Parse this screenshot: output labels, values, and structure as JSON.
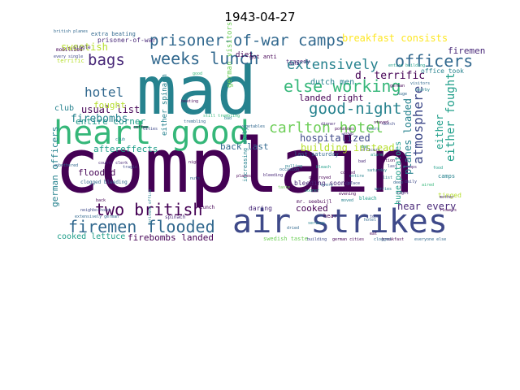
{
  "title": "1943-04-27",
  "colors": {
    "background": "#ffffff",
    "dark_purple": "#440154",
    "purple": "#482878",
    "indigo": "#3e4989",
    "blue": "#31688e",
    "teal": "#26828e",
    "sea": "#1f9e89",
    "green": "#35b779",
    "light_green": "#6ece58",
    "lime": "#b5de2b",
    "yellow": "#fde725"
  },
  "words": [
    {
      "text": "complain",
      "color": "#440154"
    },
    {
      "text": "mad",
      "color": "#26828e"
    },
    {
      "text": "heart good",
      "color": "#35b779"
    },
    {
      "text": "air strikes",
      "color": "#3e4989"
    },
    {
      "text": "prisoner-of-war camps",
      "color": "#31688e"
    },
    {
      "text": "weeks lunch",
      "color": "#31688e"
    },
    {
      "text": "bags",
      "color": "#482878"
    },
    {
      "text": "officers",
      "color": "#31688e"
    },
    {
      "text": "extensively",
      "color": "#26828e"
    },
    {
      "text": "else working",
      "color": "#35b779"
    },
    {
      "text": "good-night",
      "color": "#26828e"
    },
    {
      "text": "carlton hotel",
      "color": "#6ece58"
    },
    {
      "text": "hotel",
      "color": "#31688e"
    },
    {
      "text": "two british",
      "color": "#440154"
    },
    {
      "text": "firemen flooded",
      "color": "#31688e"
    },
    {
      "text": "atmosphere",
      "color": "#3e4989"
    },
    {
      "text": "either fought",
      "color": "#1f9e89"
    },
    {
      "text": "breakfast consists",
      "color": "#fde725"
    },
    {
      "text": "sweetish",
      "color": "#b5de2b"
    },
    {
      "text": "d. terrific",
      "color": "#440154"
    },
    {
      "text": "firemen",
      "color": "#482878"
    },
    {
      "text": "landed right",
      "color": "#440154"
    },
    {
      "text": "dutch men",
      "color": "#26828e"
    },
    {
      "text": "usual list",
      "color": "#440154"
    },
    {
      "text": "entire corner",
      "color": "#1f9e89"
    },
    {
      "text": "fought",
      "color": "#b5de2b"
    },
    {
      "text": "club",
      "color": "#26828e"
    },
    {
      "text": "firebombs",
      "color": "#26828e"
    },
    {
      "text": "aftereffects",
      "color": "#1f9e89"
    },
    {
      "text": "hospitalized",
      "color": "#3e4989"
    },
    {
      "text": "building instead",
      "color": "#b5de2b"
    },
    {
      "text": "back last",
      "color": "#31688e"
    },
    {
      "text": "planes loaded",
      "color": "#26828e"
    },
    {
      "text": "either",
      "color": "#1f9e89"
    },
    {
      "text": "german officers",
      "color": "#26828e"
    },
    {
      "text": "flooded",
      "color": "#440154"
    },
    {
      "text": "cooked",
      "color": "#440154"
    },
    {
      "text": "hear every",
      "color": "#482878"
    },
    {
      "text": "cooked lettuce",
      "color": "#1f9e89"
    },
    {
      "text": "firebombs landed",
      "color": "#440154"
    },
    {
      "text": "huge potatoes",
      "color": "#1f9e89"
    },
    {
      "text": "diet",
      "color": "#440154"
    },
    {
      "text": "german visitors",
      "color": "#6ece58"
    },
    {
      "text": "either spinach",
      "color": "#26828e"
    },
    {
      "text": "extra beating",
      "color": "#31688e"
    },
    {
      "text": "prisoner-of-war",
      "color": "#482878"
    },
    {
      "text": "terrific",
      "color": "#b5de2b"
    },
    {
      "text": "mobilized",
      "color": "#440154"
    },
    {
      "text": "single",
      "color": "#482878"
    },
    {
      "text": "got anti",
      "color": "#440154"
    },
    {
      "text": "tragedy",
      "color": "#482878"
    },
    {
      "text": "office took",
      "color": "#26828e"
    },
    {
      "text": "last saturday",
      "color": "#31688e"
    },
    {
      "text": "bleeding sooner",
      "color": "#482878"
    },
    {
      "text": "swedish taste",
      "color": "#6ece58"
    },
    {
      "text": "tinged",
      "color": "#b5de2b"
    },
    {
      "text": "daring",
      "color": "#482878"
    },
    {
      "text": "increasing daily",
      "color": "#26828e"
    },
    {
      "text": "clogged bleeding",
      "color": "#31688e"
    },
    {
      "text": "spinach",
      "color": "#482878"
    },
    {
      "text": "hear",
      "color": "#440154"
    },
    {
      "text": "bleach",
      "color": "#1f9e89"
    },
    {
      "text": "camps",
      "color": "#26828e"
    },
    {
      "text": "lunch",
      "color": "#440154"
    },
    {
      "text": "british planes",
      "color": "#31688e"
    },
    {
      "text": "every single",
      "color": "#3e4989"
    },
    {
      "text": "breakfast",
      "color": "#440154"
    },
    {
      "text": "everyone else",
      "color": "#31688e"
    },
    {
      "text": "building",
      "color": "#3e4989"
    },
    {
      "text": "german cities",
      "color": "#440154"
    },
    {
      "text": "clogged",
      "color": "#31688e"
    },
    {
      "text": "trembling",
      "color": "#31688e"
    },
    {
      "text": "county clerk",
      "color": "#482878"
    },
    {
      "text": "back",
      "color": "#440154"
    },
    {
      "text": "planes",
      "color": "#440154"
    },
    {
      "text": "flowers",
      "color": "#440154"
    },
    {
      "text": "tragic",
      "color": "#3e4989"
    },
    {
      "text": "private office",
      "color": "#26828e"
    },
    {
      "text": "neighborhood",
      "color": "#3e4989"
    },
    {
      "text": "extensively german",
      "color": "#31688e"
    },
    {
      "text": "unbothered",
      "color": "#31688e"
    },
    {
      "text": "entire building",
      "color": "#1f9e89"
    },
    {
      "text": "still trembling",
      "color": "#35b779"
    },
    {
      "text": "german",
      "color": "#440154"
    },
    {
      "text": "visitors",
      "color": "#31688e"
    },
    {
      "text": "nearby",
      "color": "#26828e"
    },
    {
      "text": "destroyed",
      "color": "#440154"
    },
    {
      "text": "anti",
      "color": "#482878"
    },
    {
      "text": "taste",
      "color": "#6ece58"
    },
    {
      "text": "huge",
      "color": "#31688e"
    },
    {
      "text": "sat",
      "color": "#440154"
    },
    {
      "text": "last",
      "color": "#3e4989"
    },
    {
      "text": "mother",
      "color": "#482878"
    },
    {
      "text": "saturday",
      "color": "#26828e"
    },
    {
      "text": "aired",
      "color": "#35b779"
    },
    {
      "text": "list",
      "color": "#26828e"
    },
    {
      "text": "deep",
      "color": "#31688e"
    },
    {
      "text": "club",
      "color": "#26828e"
    },
    {
      "text": "coffee",
      "color": "#440154"
    },
    {
      "text": "cities",
      "color": "#3e4989"
    },
    {
      "text": "vegetables",
      "color": "#31688e"
    },
    {
      "text": "dinner",
      "color": "#482878"
    },
    {
      "text": "cooked",
      "color": "#440154"
    },
    {
      "text": "worries",
      "color": "#26828e"
    },
    {
      "text": "sooner",
      "color": "#1f9e89"
    },
    {
      "text": "hours",
      "color": "#31688e"
    },
    {
      "text": "dutch",
      "color": "#3e4989"
    },
    {
      "text": "potatoes",
      "color": "#440154"
    },
    {
      "text": "soup",
      "color": "#482878"
    },
    {
      "text": "dan",
      "color": "#26828e"
    },
    {
      "text": "mr. seebuijl",
      "color": "#440154"
    },
    {
      "text": "took",
      "color": "#3e4989"
    },
    {
      "text": "hotel",
      "color": "#31688e"
    },
    {
      "text": "bad",
      "color": "#482878"
    },
    {
      "text": "entire",
      "color": "#26828e"
    },
    {
      "text": "stayed",
      "color": "#440154"
    },
    {
      "text": "place",
      "color": "#3e4989"
    },
    {
      "text": "bleach",
      "color": "#1f9e89"
    },
    {
      "text": "every",
      "color": "#31688e"
    },
    {
      "text": "evening",
      "color": "#440154"
    },
    {
      "text": "moved",
      "color": "#26828e"
    },
    {
      "text": "daily",
      "color": "#3e4989"
    },
    {
      "text": "right",
      "color": "#482878"
    },
    {
      "text": "food",
      "color": "#1f9e89"
    },
    {
      "text": "beating",
      "color": "#440154"
    },
    {
      "text": "occasion",
      "color": "#31688e"
    },
    {
      "text": "serious",
      "color": "#26828e"
    },
    {
      "text": "bleeding",
      "color": "#482878"
    },
    {
      "text": "eat",
      "color": "#440154"
    },
    {
      "text": "dried",
      "color": "#31688e"
    },
    {
      "text": "officers",
      "color": "#3e4989"
    },
    {
      "text": "pulling",
      "color": "#26828e"
    },
    {
      "text": "ration",
      "color": "#440154"
    },
    {
      "text": "alarm",
      "color": "#1f9e89"
    },
    {
      "text": "night",
      "color": "#440154"
    },
    {
      "text": "nuts",
      "color": "#31688e"
    },
    {
      "text": "camps",
      "color": "#482878"
    },
    {
      "text": "bad",
      "color": "#26828e"
    },
    {
      "text": "good",
      "color": "#35b779"
    }
  ]
}
